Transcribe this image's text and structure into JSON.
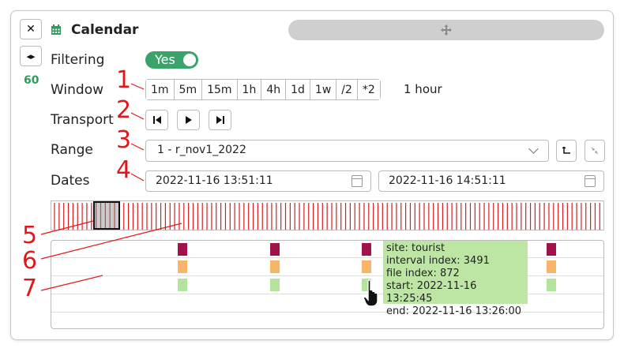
{
  "window_title": "Calendar",
  "buttons": {
    "close": "✕",
    "expand": "◂▸"
  },
  "count_value": "60",
  "filtering": {
    "label": "Filtering",
    "toggle_text": "Yes"
  },
  "window": {
    "label": "Window",
    "options": [
      "1m",
      "5m",
      "15m",
      "1h",
      "4h",
      "1d",
      "1w",
      "/2",
      "*2"
    ],
    "value": "1 hour"
  },
  "transport": {
    "label": "Transport"
  },
  "range": {
    "label": "Range",
    "selected": "1 - r_nov1_2022"
  },
  "dates": {
    "label": "Dates",
    "start": "2022-11-16 13:51:11",
    "end": "2022-11-16 14:51:11"
  },
  "tooltip": {
    "lines": [
      "site: tourist",
      "interval index: 3491",
      "file index: 872",
      "start: 2022-11-16 13:25:45",
      "end: 2022-11-16 13:26:00"
    ]
  },
  "annotations": [
    "1",
    "2",
    "3",
    "4",
    "5",
    "6",
    "7"
  ],
  "colors": {
    "toggle_on": "#3aa36a",
    "count": "#2e9a5c",
    "strip_line": "#d42020",
    "mark_row1": "#a0124a",
    "mark_row2": "#f8b56a",
    "mark_row3": "#b4e39c",
    "tooltip_bg": "#bde6a5",
    "annotation": "#e0181b"
  },
  "icons": {
    "close": "close-icon",
    "expand": "expand-icon",
    "calendar": "calendar-icon",
    "drag": "move-icon",
    "first": "skip-first-icon",
    "play": "play-icon",
    "last": "skip-last-icon",
    "chevron": "chevron-down-icon",
    "date_cal": "calendar-icon",
    "range_a": "corner-arrow-icon",
    "range_b": "shrink-icon"
  }
}
